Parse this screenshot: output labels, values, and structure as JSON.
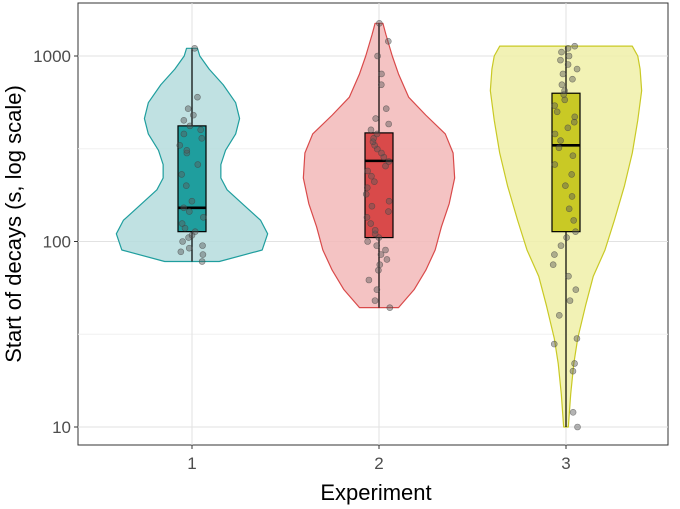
{
  "chart_data": {
    "type": "violin-boxplot",
    "xlabel": "Experiment",
    "ylabel": "Start of decays (s, log scale)",
    "y_scale": "log",
    "ylim": [
      10,
      1600
    ],
    "y_ticks": [
      {
        "value": 10,
        "label": "10"
      },
      {
        "value": 100,
        "label": "100"
      },
      {
        "value": 1000,
        "label": "1000"
      }
    ],
    "grid": true,
    "categories": [
      "1",
      "2",
      "3"
    ],
    "groups": [
      {
        "category": "1",
        "color": "#1f9e9e",
        "fill_light": "#b5dcdd",
        "box": {
          "min": 78,
          "q1": 113,
          "median": 152,
          "q3": 420,
          "max": 1100
        },
        "violin": [
          [
            78,
            0.35
          ],
          [
            90,
            0.9
          ],
          [
            110,
            0.97
          ],
          [
            130,
            0.88
          ],
          [
            155,
            0.68
          ],
          [
            190,
            0.45
          ],
          [
            220,
            0.37
          ],
          [
            260,
            0.37
          ],
          [
            310,
            0.43
          ],
          [
            380,
            0.56
          ],
          [
            460,
            0.61
          ],
          [
            560,
            0.56
          ],
          [
            700,
            0.4
          ],
          [
            850,
            0.22
          ],
          [
            1000,
            0.1
          ],
          [
            1100,
            0.07
          ]
        ],
        "points": [
          78,
          85,
          88,
          92,
          95,
          100,
          105,
          108,
          113,
          118,
          125,
          135,
          145,
          152,
          165,
          200,
          230,
          260,
          300,
          310,
          330,
          360,
          380,
          400,
          420,
          450,
          480,
          520,
          600,
          1100
        ]
      },
      {
        "category": "2",
        "color": "#d94a4a",
        "fill_light": "#f2b8b8",
        "box": {
          "min": 44,
          "q1": 105,
          "median": 272,
          "q3": 385,
          "max": 1500
        },
        "violin": [
          [
            44,
            0.25
          ],
          [
            55,
            0.45
          ],
          [
            70,
            0.6
          ],
          [
            90,
            0.72
          ],
          [
            120,
            0.8
          ],
          [
            160,
            0.9
          ],
          [
            220,
            0.97
          ],
          [
            300,
            0.95
          ],
          [
            380,
            0.85
          ],
          [
            480,
            0.6
          ],
          [
            600,
            0.38
          ],
          [
            800,
            0.25
          ],
          [
            1000,
            0.17
          ],
          [
            1300,
            0.09
          ],
          [
            1500,
            0.05
          ]
        ],
        "points": [
          44,
          48,
          55,
          62,
          70,
          75,
          80,
          85,
          90,
          95,
          100,
          105,
          110,
          115,
          125,
          135,
          145,
          155,
          165,
          180,
          195,
          210,
          225,
          240,
          255,
          270,
          285,
          300,
          315,
          330,
          345,
          360,
          380,
          400,
          430,
          460,
          520,
          700,
          800,
          1000,
          1200,
          1500
        ]
      },
      {
        "category": "3",
        "color": "#c9c925",
        "fill_light": "#f0f0a8",
        "box": {
          "min": 10,
          "q1": 113,
          "median": 330,
          "q3": 630,
          "max": 1130
        },
        "violin": [
          [
            10,
            0.03
          ],
          [
            15,
            0.06
          ],
          [
            22,
            0.1
          ],
          [
            30,
            0.15
          ],
          [
            45,
            0.25
          ],
          [
            65,
            0.35
          ],
          [
            90,
            0.5
          ],
          [
            130,
            0.62
          ],
          [
            200,
            0.75
          ],
          [
            300,
            0.85
          ],
          [
            450,
            0.92
          ],
          [
            650,
            0.97
          ],
          [
            850,
            0.95
          ],
          [
            1000,
            0.92
          ],
          [
            1130,
            0.85
          ]
        ],
        "points": [
          10,
          12,
          20,
          22,
          28,
          30,
          40,
          48,
          55,
          65,
          75,
          85,
          95,
          105,
          113,
          130,
          150,
          175,
          200,
          230,
          260,
          290,
          320,
          350,
          380,
          410,
          440,
          470,
          500,
          540,
          580,
          620,
          650,
          700,
          750,
          800,
          850,
          900,
          950,
          1000,
          1050,
          1100,
          1130
        ]
      }
    ]
  }
}
